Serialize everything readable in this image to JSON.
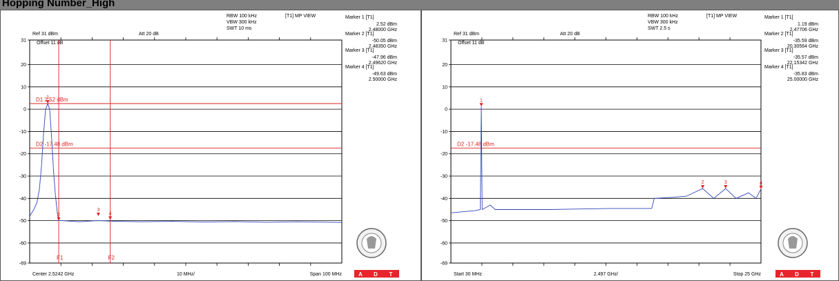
{
  "title": "Hopping Number_High",
  "colors": {
    "trace": "#2f45b8",
    "marker": "#dd2222",
    "grid": "#000000",
    "logo_red": "#e8242c"
  },
  "panels": [
    {
      "header": {
        "rbw": "RBW 100 kHz",
        "vbw": "VBW 300 kHz",
        "swt": "SWT 10 ms",
        "view": "[T1] MP VIEW",
        "ref": "Ref 31 dBm",
        "att": "Att 20 dB",
        "offset": "Offset 11 dB"
      },
      "markers": [
        {
          "title": "Marker 1 [T1]",
          "level": "2.52 dBm",
          "freq": "2.48000 GHz"
        },
        {
          "title": "Marker 2 [T1]",
          "level": "-50.05 dBm",
          "freq": "2.48350 GHz"
        },
        {
          "title": "Marker 3 [T1]",
          "level": "-47.96 dBm",
          "freq": "2.49620 GHz"
        },
        {
          "title": "Marker 4 [T1]",
          "level": "-49.63 dBm",
          "freq": "2.50000 GHz"
        }
      ],
      "footer": {
        "left": "Center 2.5242 GHz",
        "center": "10 MHz/",
        "right": "Span 100 MHz"
      },
      "logo_text": [
        "A",
        "D",
        "T"
      ]
    },
    {
      "header": {
        "rbw": "RBW 100 kHz",
        "vbw": "VBW 300 kHz",
        "swt": "SWT 2.5 s",
        "view": "[T1] MP VIEW",
        "ref": "Ref 31 dBm",
        "att": "Att 20 dB",
        "offset": "Offset 11 dB"
      },
      "markers": [
        {
          "title": "Marker 1 [T1]",
          "level": "1.19 dBm",
          "freq": "2.47706 GHz"
        },
        {
          "title": "Marker 2 [T1]",
          "level": "-35.59 dBm",
          "freq": "20.30564 GHz"
        },
        {
          "title": "Marker 3 [T1]",
          "level": "-35.57 dBm",
          "freq": "22.15342 GHz"
        },
        {
          "title": "Marker 4 [T1]",
          "level": "-35.83 dBm",
          "freq": "25.00000 GHz"
        }
      ],
      "footer": {
        "left": "Start 30 MHz",
        "center": "2.497 GHz/",
        "right": "Stop 25 GHz"
      },
      "logo_text": [
        "A",
        "D",
        "T"
      ]
    }
  ],
  "chart_data": [
    {
      "type": "line",
      "ylim": [
        -69,
        31
      ],
      "y_ticks": [
        "31",
        "20",
        "10",
        "0",
        "-10",
        "-20",
        "-30",
        "-40",
        "-50",
        "-60",
        "-69"
      ],
      "x_range_mhz": [
        2474.2,
        2574.2
      ],
      "display_lines": [
        {
          "label": "D1 2.52 dBm",
          "value": 2.52
        },
        {
          "label": "D2 -17.48 dBm",
          "value": -17.48
        }
      ],
      "frequency_lines": [
        {
          "label": "F1",
          "x_mhz": 2483.5
        },
        {
          "label": "F2",
          "x_mhz": 2500.0
        }
      ],
      "markers": [
        {
          "label": "1",
          "x_mhz": 2480.0,
          "y": 2.52
        },
        {
          "label": "2",
          "x_mhz": 2483.5,
          "y": -50.05
        },
        {
          "label": "3",
          "x_mhz": 2496.2,
          "y": -47.96
        },
        {
          "label": "4",
          "x_mhz": 2500.0,
          "y": -49.63
        }
      ],
      "series": [
        {
          "values": [
            [
              2474.2,
              -48
            ],
            [
              2475.5,
              -45
            ],
            [
              2476.5,
              -42
            ],
            [
              2477.3,
              -36
            ],
            [
              2478.0,
              -25
            ],
            [
              2478.7,
              -10
            ],
            [
              2479.3,
              0
            ],
            [
              2480.0,
              2.5
            ],
            [
              2480.6,
              0
            ],
            [
              2481.2,
              -12
            ],
            [
              2481.8,
              -27
            ],
            [
              2482.4,
              -38
            ],
            [
              2483.0,
              -46
            ],
            [
              2483.5,
              -50
            ],
            [
              2484.5,
              -50
            ],
            [
              2490,
              -50.5
            ],
            [
              2496,
              -50
            ],
            [
              2500,
              -50.2
            ],
            [
              2510,
              -50.5
            ],
            [
              2520,
              -50.3
            ],
            [
              2530,
              -50.6
            ],
            [
              2540,
              -50.4
            ],
            [
              2550,
              -50.7
            ],
            [
              2560,
              -50.5
            ],
            [
              2574.2,
              -50.8
            ]
          ]
        }
      ]
    },
    {
      "type": "line",
      "ylim": [
        -69,
        31
      ],
      "y_ticks": [
        "31",
        "20",
        "10",
        "0",
        "-10",
        "-20",
        "-30",
        "-40",
        "-50",
        "-60",
        "-69"
      ],
      "x_range_mhz": [
        30,
        25000
      ],
      "display_lines": [
        {
          "label": "D2 -17.48 dBm",
          "value": -17.48
        }
      ],
      "frequency_lines": [],
      "markers": [
        {
          "label": "1",
          "x_mhz": 2477.06,
          "y": 1.19
        },
        {
          "label": "2",
          "x_mhz": 20305.64,
          "y": -35.59
        },
        {
          "label": "3",
          "x_mhz": 22153.42,
          "y": -35.57
        },
        {
          "label": "4",
          "x_mhz": 25000,
          "y": -35.83
        }
      ],
      "series": [
        {
          "values": [
            [
              30,
              -46.5
            ],
            [
              1000,
              -46
            ],
            [
              2000,
              -45.5
            ],
            [
              2400,
              -45
            ],
            [
              2477,
              1.19
            ],
            [
              2550,
              -45
            ],
            [
              3200,
              -43
            ],
            [
              3600,
              -45
            ],
            [
              5000,
              -45
            ],
            [
              8000,
              -45
            ],
            [
              10000,
              -44.8
            ],
            [
              13000,
              -44.5
            ],
            [
              16200,
              -44.5
            ],
            [
              16400,
              -40
            ],
            [
              18000,
              -39.5
            ],
            [
              19000,
              -39
            ],
            [
              20305,
              -35.6
            ],
            [
              21200,
              -40
            ],
            [
              22153,
              -35.6
            ],
            [
              23000,
              -40
            ],
            [
              24000,
              -37.5
            ],
            [
              24600,
              -40
            ],
            [
              25000,
              -35.8
            ]
          ]
        }
      ]
    }
  ]
}
